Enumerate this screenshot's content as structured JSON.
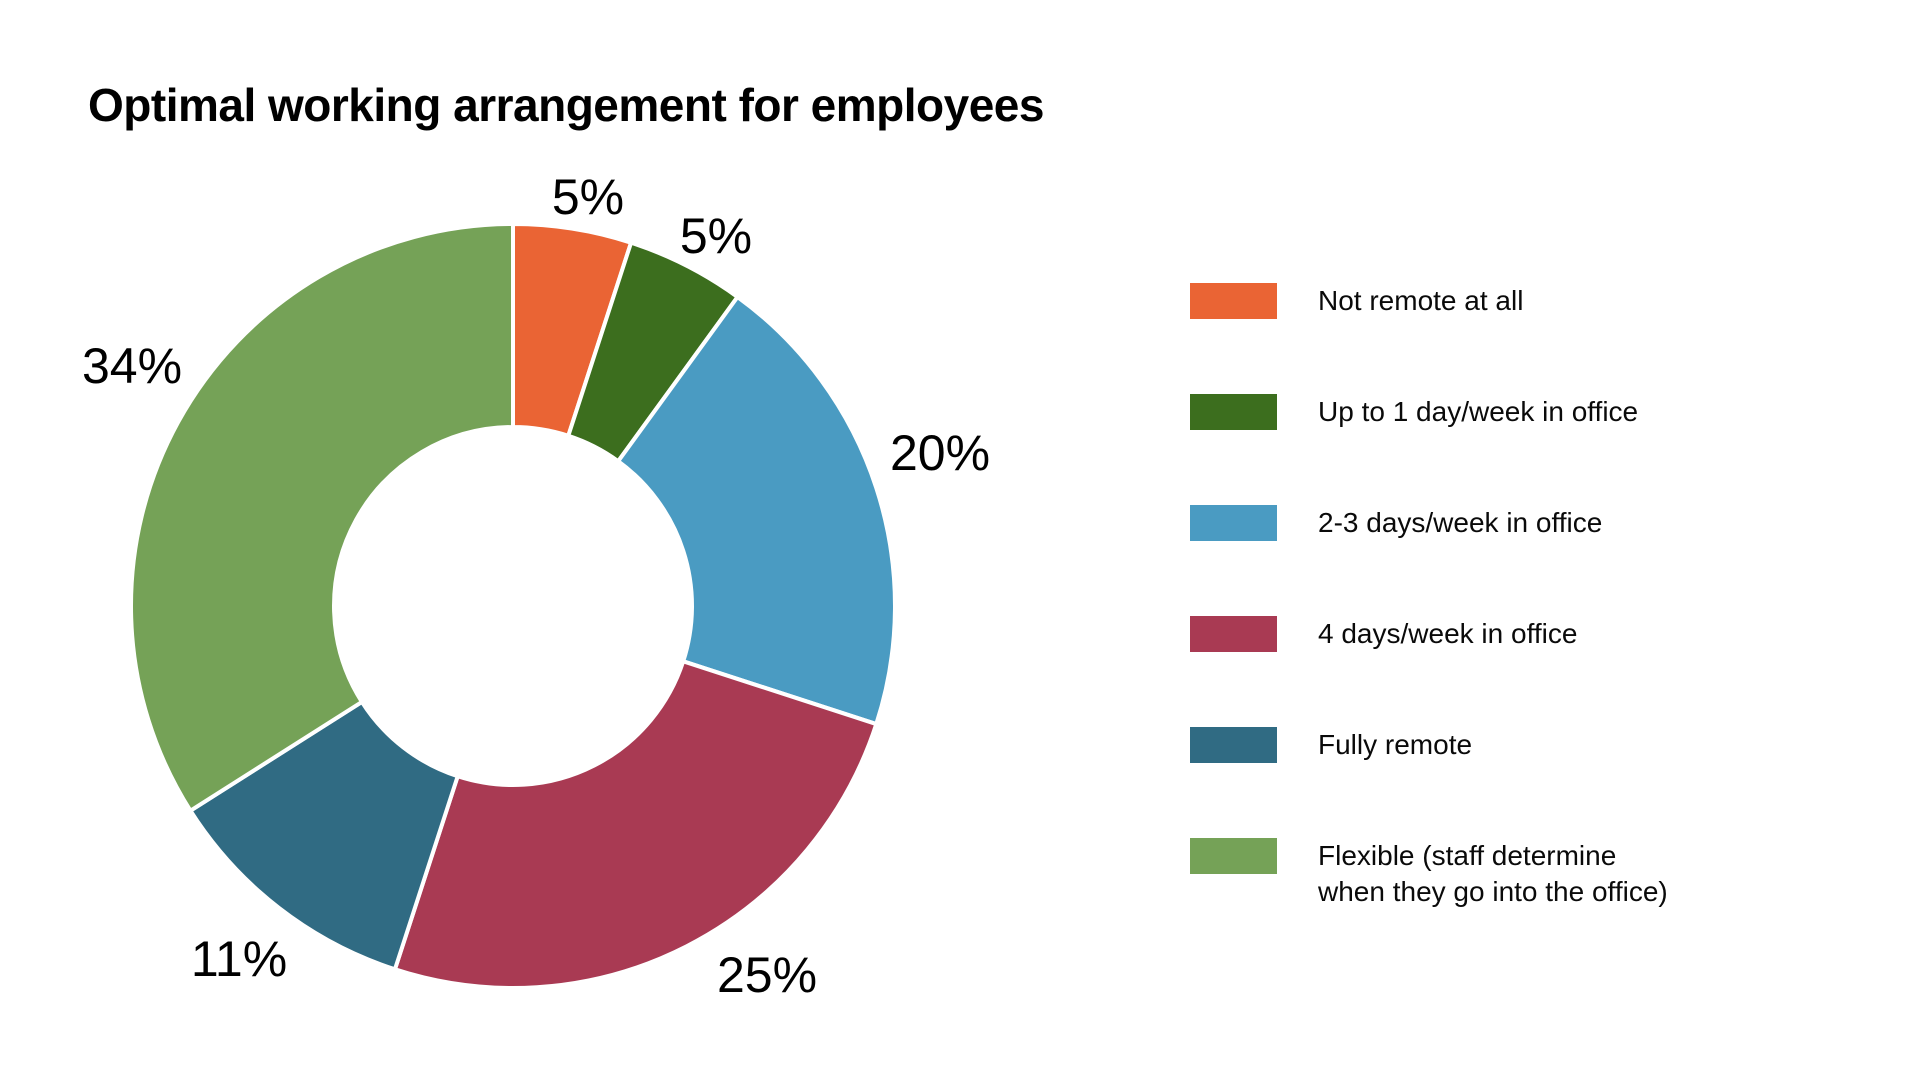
{
  "title": "Optimal working arrangement for employees",
  "chart_data": {
    "type": "pie",
    "subtype": "donut",
    "title": "Optimal working arrangement for employees",
    "units": "percent",
    "start_angle_deg": 0,
    "direction": "clockwise",
    "legend_position": "right",
    "donut_hole_ratio": 0.47,
    "background_color": "#ffffff",
    "separator_color": "#ffffff",
    "slices": [
      {
        "label": "Not remote at all",
        "value": 5,
        "display": "5%",
        "color": "#EA6434"
      },
      {
        "label": "Up to 1 day/week in office",
        "value": 5,
        "display": "5%",
        "color": "#3C6E1E"
      },
      {
        "label": "2-3 days/week in office",
        "value": 20,
        "display": "20%",
        "color": "#4A9BC2"
      },
      {
        "label": "4 days/week in office",
        "value": 25,
        "display": "25%",
        "color": "#A93A53"
      },
      {
        "label": "Fully remote",
        "value": 11,
        "display": "11%",
        "color": "#306B83"
      },
      {
        "label": "Flexible (staff determine\nwhen they go into the office)",
        "value": 34,
        "display": "34%",
        "color": "#75A257"
      }
    ]
  }
}
